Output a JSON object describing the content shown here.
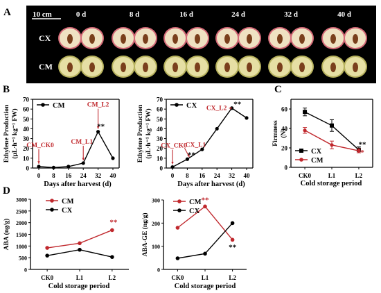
{
  "panel_labels": {
    "A": "A",
    "B": "B",
    "C": "C",
    "D": "D"
  },
  "photo": {
    "scale_bar": "10 cm",
    "days": [
      "0 d",
      "8 d",
      "16 d",
      "24 d",
      "32 d",
      "40 d"
    ],
    "rows": [
      "CX",
      "CM"
    ],
    "colors": {
      "background": "#000000",
      "cx_skin": "#d46a78",
      "cx_flesh": "#efe1c2",
      "cm_skin": "#b7b25e",
      "cm_flesh": "#e6dfa4",
      "seed": "#7a3f1c"
    }
  },
  "colors": {
    "CM": "#c0282d",
    "CX": "#000000",
    "arrow": "#c0282d"
  },
  "chart_data": [
    {
      "id": "B1",
      "type": "line",
      "x": [
        0,
        8,
        16,
        24,
        32,
        40
      ],
      "series": [
        {
          "name": "CM",
          "values": [
            1.5,
            0.5,
            1.5,
            5,
            37,
            10
          ],
          "color": "#000000"
        }
      ],
      "ylim": [
        0,
        70
      ],
      "yticks": [
        0,
        10,
        20,
        30,
        40,
        50,
        60,
        70
      ],
      "xticks": [
        "0",
        "8",
        "16",
        "24",
        "32",
        "40"
      ],
      "xlabel": "Days after harvest (d)",
      "ylabel1": "Ethylene Production",
      "ylabel2": "(μL·h⁻¹ kg⁻¹ FW)",
      "legend": "top-left",
      "annotations": [
        {
          "text": "CM_CK0",
          "x": 0,
          "y": 1.5
        },
        {
          "text": "CM_L1",
          "x": 24,
          "y": 5
        },
        {
          "text": "CM_L2",
          "x": 32,
          "y": 37
        }
      ],
      "significance": [
        {
          "text": "**",
          "x": 32,
          "y": 37
        }
      ]
    },
    {
      "id": "B2",
      "type": "line",
      "x": [
        0,
        8,
        16,
        24,
        32,
        40
      ],
      "series": [
        {
          "name": "CX",
          "values": [
            1,
            9,
            19,
            40,
            61,
            51
          ],
          "color": "#000000"
        }
      ],
      "ylim": [
        0,
        70
      ],
      "yticks": [
        0,
        10,
        20,
        30,
        40,
        50,
        60,
        70
      ],
      "xticks": [
        "0",
        "8",
        "16",
        "24",
        "32",
        "40"
      ],
      "xlabel": "Days after harvest (d)",
      "ylabel1": "Ethylene Production",
      "ylabel2": "(μL·h⁻¹ kg⁻¹ FW)",
      "legend": "top-left",
      "annotations": [
        {
          "text": "CX_CK0",
          "x": 0,
          "y": 1
        },
        {
          "text": "CX_L1",
          "x": 8,
          "y": 9
        },
        {
          "text": "CX_L2",
          "x": 32,
          "y": 61
        }
      ],
      "significance": [
        {
          "text": "**",
          "x": 8,
          "y": 9
        },
        {
          "text": "**",
          "x": 32,
          "y": 61
        }
      ]
    },
    {
      "id": "C",
      "type": "line",
      "categories": [
        "CK0",
        "L1",
        "L2"
      ],
      "series": [
        {
          "name": "CX",
          "values": [
            57,
            43,
            18
          ],
          "errors": [
            4,
            6,
            3
          ],
          "color": "#000000",
          "marker": "square"
        },
        {
          "name": "CM",
          "values": [
            38,
            23,
            17
          ],
          "errors": [
            3,
            4,
            2
          ],
          "color": "#c0282d",
          "marker": "circle"
        }
      ],
      "ylim": [
        0,
        70
      ],
      "yticks": [
        0,
        20,
        40,
        60
      ],
      "xlabel": "Cold storage period",
      "ylabel1": "Firmness",
      "ylabel2": "(N)",
      "legend": "bottom-left",
      "significance": [
        {
          "text": "**",
          "x": "L2",
          "y": 21,
          "color": "#000000"
        },
        {
          "text": "*",
          "x": "L2",
          "y": 13,
          "color": "#c0282d"
        }
      ]
    },
    {
      "id": "D1",
      "type": "line",
      "categories": [
        "CK0",
        "L1",
        "L2"
      ],
      "series": [
        {
          "name": "CM",
          "values": [
            920,
            1120,
            1680
          ],
          "color": "#c0282d"
        },
        {
          "name": "CX",
          "values": [
            590,
            840,
            530
          ],
          "color": "#000000"
        }
      ],
      "ylim": [
        0,
        3000
      ],
      "yticks": [
        0,
        500,
        1000,
        1500,
        2000,
        2500,
        3000
      ],
      "xlabel": "Cold storage period",
      "ylabel1": "ABA (ng/g)",
      "legend": "top-left",
      "significance": [
        {
          "text": "**",
          "x": "L2",
          "y": 1680,
          "color": "#c0282d"
        }
      ]
    },
    {
      "id": "D2",
      "type": "line",
      "categories": [
        "CK0",
        "L1",
        "L2"
      ],
      "series": [
        {
          "name": "CM",
          "values": [
            180,
            272,
            128
          ],
          "color": "#c0282d"
        },
        {
          "name": "CX",
          "values": [
            48,
            68,
            200
          ],
          "color": "#000000"
        }
      ],
      "ylim": [
        0,
        300
      ],
      "yticks": [
        0,
        100,
        200,
        300
      ],
      "xlabel": "Cold storage period",
      "ylabel1": "ABA-GE (ng/g)",
      "legend": "top-left",
      "significance": [
        {
          "text": "**",
          "x": "L1",
          "y": 272,
          "color": "#c0282d"
        },
        {
          "text": "**",
          "x": "L2",
          "y": 128,
          "color": "#000000"
        }
      ]
    }
  ]
}
